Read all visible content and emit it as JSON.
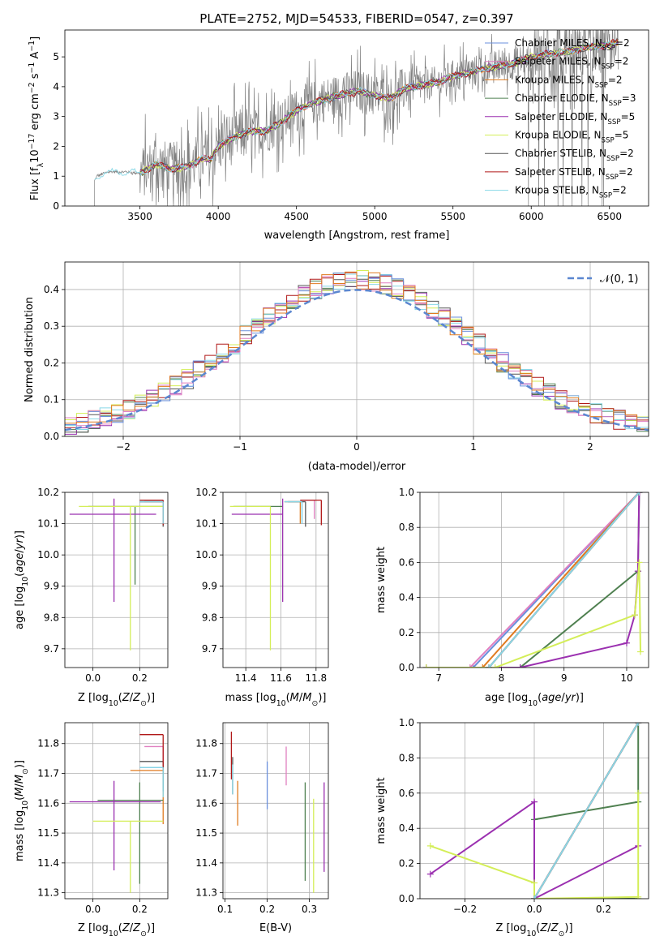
{
  "figure": {
    "title": "PLATE=2752, MJD=54533, FIBERID=0547, z=0.397"
  },
  "colors": {
    "Chabrier MILES": "#6a8fdc",
    "Salpeter MILES": "#e07fc0",
    "Kroupa MILES": "#e07b20",
    "Chabrier ELODIE": "#4f8050",
    "Salpeter ELODIE": "#9b30b0",
    "Kroupa ELODIE": "#d4ee58",
    "Chabrier STELIB": "#555555",
    "Salpeter STELIB": "#b01818",
    "Kroupa STELIB": "#88d8e6",
    "data": "#808080"
  },
  "chart_data": [
    {
      "id": "spectrum",
      "type": "line",
      "title": "PLATE=2752, MJD=54533, FIBERID=0547, z=0.397",
      "xlabel": "wavelength [Angstrom, rest frame]",
      "ylabel": "Flux [f_λ 10^-17 erg cm^-2 s^-1 A^-1]",
      "xlim": [
        3020,
        6750
      ],
      "ylim": [
        0,
        5.9
      ],
      "xticks": [
        "3500",
        "4000",
        "4500",
        "5000",
        "5500",
        "6000",
        "6500"
      ],
      "yticks": [
        "0",
        "1",
        "2",
        "3",
        "4",
        "5"
      ],
      "legend": [
        {
          "base": "Chabrier MILES, N",
          "sub": "SSP",
          "tail": "=2"
        },
        {
          "base": "Salpeter MILES, N",
          "sub": "SSP",
          "tail": "=2"
        },
        {
          "base": "Kroupa MILES, N",
          "sub": "SSP",
          "tail": "=2"
        },
        {
          "base": "Chabrier ELODIE, N",
          "sub": "SSP",
          "tail": "=3"
        },
        {
          "base": "Salpeter ELODIE, N",
          "sub": "SSP",
          "tail": "=5"
        },
        {
          "base": "Kroupa ELODIE, N",
          "sub": "SSP",
          "tail": "=5"
        },
        {
          "base": "Chabrier STELIB, N",
          "sub": "SSP",
          "tail": "=2"
        },
        {
          "base": "Salpeter STELIB, N",
          "sub": "SSP",
          "tail": "=2"
        },
        {
          "base": "Kroupa STELIB, N",
          "sub": "SSP",
          "tail": "=2"
        }
      ],
      "legend_loc": "right",
      "continuum": [
        [
          3210,
          0.85
        ],
        [
          3225,
          1.0
        ],
        [
          3300,
          1.15
        ],
        [
          3400,
          1.15
        ],
        [
          3500,
          1.1
        ],
        [
          3600,
          1.4
        ],
        [
          3700,
          1.25
        ],
        [
          3800,
          1.3
        ],
        [
          3900,
          1.6
        ],
        [
          3950,
          1.55
        ],
        [
          4000,
          2.0
        ],
        [
          4100,
          2.3
        ],
        [
          4200,
          2.5
        ],
        [
          4300,
          2.5
        ],
        [
          4400,
          2.8
        ],
        [
          4500,
          3.2
        ],
        [
          4600,
          3.45
        ],
        [
          4700,
          3.6
        ],
        [
          4800,
          3.75
        ],
        [
          4900,
          3.85
        ],
        [
          5000,
          3.7
        ],
        [
          5100,
          3.6
        ],
        [
          5200,
          3.95
        ],
        [
          5300,
          4.05
        ],
        [
          5400,
          4.15
        ],
        [
          5500,
          4.35
        ],
        [
          5600,
          4.45
        ],
        [
          5700,
          4.6
        ],
        [
          5800,
          4.7
        ],
        [
          5900,
          4.8
        ],
        [
          6000,
          5.0
        ],
        [
          6100,
          5.1
        ],
        [
          6200,
          5.15
        ],
        [
          6300,
          5.25
        ],
        [
          6400,
          5.35
        ],
        [
          6500,
          5.4
        ],
        [
          6550,
          5.5
        ]
      ]
    },
    {
      "id": "residuals",
      "type": "line",
      "xlabel": "(data-model)/error",
      "ylabel": "Normed distribution",
      "xlim": [
        -2.5,
        2.5
      ],
      "ylim": [
        0,
        0.475
      ],
      "xticks": [
        "−2",
        "−1",
        "0",
        "1",
        "2"
      ],
      "yticks": [
        "0.0",
        "0.1",
        "0.2",
        "0.3",
        "0.4"
      ],
      "legend": [
        "𝒩(0, 1)"
      ],
      "legend_loc": "upper right",
      "grid": true,
      "bin_width": 0.1
    },
    {
      "id": "age-vs-Z",
      "type": "scatter",
      "xlabel": "Z [log10(Z/Z⊙)]",
      "ylabel": "age  [log10(age/yr)]",
      "xlim": [
        -0.12,
        0.32
      ],
      "ylim": [
        9.64,
        10.2
      ],
      "xticks": [
        "0.0",
        "0.2"
      ],
      "yticks": [
        "9.7",
        "9.8",
        "9.9",
        "10.0",
        "10.1",
        "10.2"
      ],
      "grid": true,
      "points": [
        {
          "series": "Chabrier MILES",
          "x": 0.3,
          "xerr": [
            0.1,
            0.0
          ],
          "y": 10.17,
          "yerr": [
            0.07,
            0.0
          ]
        },
        {
          "series": "Salpeter MILES",
          "x": 0.3,
          "xerr": [
            0.08,
            0.0
          ],
          "y": 10.175,
          "yerr": [
            0.06,
            0.0
          ]
        },
        {
          "series": "Kroupa MILES",
          "x": 0.3,
          "xerr": [
            0.08,
            0.0
          ],
          "y": 10.17,
          "yerr": [
            0.07,
            0.0
          ]
        },
        {
          "series": "Chabrier ELODIE",
          "x": 0.18,
          "xerr": [
            0.2,
            0.12
          ],
          "y": 10.155,
          "yerr": [
            0.25,
            0.0
          ]
        },
        {
          "series": "Salpeter ELODIE",
          "x": 0.09,
          "xerr": [
            0.19,
            0.18
          ],
          "y": 10.13,
          "yerr": [
            0.28,
            0.05
          ]
        },
        {
          "series": "Kroupa ELODIE",
          "x": 0.16,
          "xerr": [
            0.22,
            0.14
          ],
          "y": 10.155,
          "yerr": [
            0.46,
            0.0
          ]
        },
        {
          "series": "Chabrier STELIB",
          "x": 0.3,
          "xerr": [
            0.1,
            0.0
          ],
          "y": 10.17,
          "yerr": [
            0.08,
            0.0
          ]
        },
        {
          "series": "Salpeter STELIB",
          "x": 0.3,
          "xerr": [
            0.1,
            0.0
          ],
          "y": 10.175,
          "yerr": [
            0.08,
            0.0
          ]
        },
        {
          "series": "Kroupa STELIB",
          "x": 0.3,
          "xerr": [
            0.1,
            0.0
          ],
          "y": 10.17,
          "yerr": [
            0.07,
            0.0
          ]
        }
      ]
    },
    {
      "id": "age-vs-mass",
      "type": "scatter",
      "xlabel": "mass [log10(M/M⊙)]",
      "ylabel": "",
      "xlim": [
        11.27,
        11.87
      ],
      "ylim": [
        9.64,
        10.2
      ],
      "xticks": [
        "11.4",
        "11.6",
        "11.8"
      ],
      "yticks": [
        "9.7",
        "9.8",
        "9.9",
        "10.0",
        "10.1",
        "10.2"
      ],
      "grid": true,
      "points": [
        {
          "series": "Chabrier MILES",
          "x": 11.72,
          "xerr": [
            0.1,
            0.0
          ],
          "y": 10.17,
          "yerr": [
            0.07,
            0.0
          ]
        },
        {
          "series": "Salpeter MILES",
          "x": 11.79,
          "xerr": [
            0.08,
            0.0
          ],
          "y": 10.175,
          "yerr": [
            0.06,
            0.0
          ]
        },
        {
          "series": "Kroupa MILES",
          "x": 11.71,
          "xerr": [
            0.09,
            0.0
          ],
          "y": 10.17,
          "yerr": [
            0.07,
            0.0
          ]
        },
        {
          "series": "Chabrier ELODIE",
          "x": 11.61,
          "xerr": [
            0.28,
            0.0
          ],
          "y": 10.155,
          "yerr": [
            0.0,
            0.0
          ]
        },
        {
          "series": "Salpeter ELODIE",
          "x": 11.61,
          "xerr": [
            0.29,
            0.0
          ],
          "y": 10.13,
          "yerr": [
            0.28,
            0.05
          ]
        },
        {
          "series": "Kroupa ELODIE",
          "x": 11.54,
          "xerr": [
            0.23,
            0.0
          ],
          "y": 10.155,
          "yerr": [
            0.46,
            0.0
          ]
        },
        {
          "series": "Chabrier STELIB",
          "x": 11.74,
          "xerr": [
            0.1,
            0.0
          ],
          "y": 10.17,
          "yerr": [
            0.08,
            0.0
          ]
        },
        {
          "series": "Salpeter STELIB",
          "x": 11.83,
          "xerr": [
            0.12,
            0.0
          ],
          "y": 10.175,
          "yerr": [
            0.08,
            0.0
          ]
        },
        {
          "series": "Kroupa STELIB",
          "x": 11.72,
          "xerr": [
            0.1,
            0.0
          ],
          "y": 10.17,
          "yerr": [
            0.07,
            0.0
          ]
        }
      ]
    },
    {
      "id": "mass-weight-vs-age",
      "type": "line",
      "xlabel": "age  [log10(age/yr)]",
      "ylabel": "mass weight",
      "xlim": [
        6.7,
        10.35
      ],
      "ylim": [
        0,
        1.0
      ],
      "xticks": [
        "7",
        "8",
        "9",
        "10"
      ],
      "yticks": [
        "0.0",
        "0.2",
        "0.4",
        "0.6",
        "0.8",
        "1.0"
      ],
      "grid": true,
      "series": [
        {
          "series": "Chabrier MILES",
          "x": [
            7.55,
            10.2
          ],
          "y": [
            0.0,
            1.0
          ]
        },
        {
          "series": "Salpeter MILES",
          "x": [
            7.5,
            10.2
          ],
          "y": [
            0.0,
            1.0
          ]
        },
        {
          "series": "Kroupa MILES",
          "x": [
            7.7,
            10.2
          ],
          "y": [
            0.0,
            1.0
          ]
        },
        {
          "series": "Chabrier ELODIE",
          "x": [
            6.8,
            8.3,
            10.18,
            10.2
          ],
          "y": [
            0.0,
            0.0,
            0.55,
            1.0
          ]
        },
        {
          "series": "Salpeter ELODIE",
          "x": [
            6.8,
            8.3,
            10.0,
            10.13,
            10.18,
            10.2
          ],
          "y": [
            0.0,
            0.0,
            0.14,
            0.3,
            0.55,
            1.0
          ]
        },
        {
          "series": "Kroupa ELODIE",
          "x": [
            6.8,
            7.9,
            10.13,
            10.2,
            10.22
          ],
          "y": [
            0.0,
            0.0,
            0.3,
            0.6,
            0.09
          ]
        },
        {
          "series": "Chabrier STELIB",
          "x": [
            7.8,
            10.2
          ],
          "y": [
            0.0,
            1.0
          ]
        },
        {
          "series": "Salpeter STELIB",
          "x": [
            7.8,
            10.2
          ],
          "y": [
            0.0,
            1.0
          ]
        },
        {
          "series": "Kroupa STELIB",
          "x": [
            7.8,
            10.2
          ],
          "y": [
            0.0,
            1.0
          ]
        }
      ]
    },
    {
      "id": "mass-vs-Z",
      "type": "scatter",
      "xlabel": "Z [log10(Z/Z⊙)]",
      "ylabel": "mass [log10(M/M⊙)]",
      "xlim": [
        -0.12,
        0.32
      ],
      "ylim": [
        11.28,
        11.87
      ],
      "xticks": [
        "0.0",
        "0.2"
      ],
      "yticks": [
        "11.3",
        "11.4",
        "11.5",
        "11.6",
        "11.7",
        "11.8"
      ],
      "grid": true,
      "points": [
        {
          "series": "Chabrier MILES",
          "x": 0.3,
          "xerr": [
            0.1,
            0.0
          ],
          "y": 11.72,
          "yerr": [
            0.07,
            0.0
          ]
        },
        {
          "series": "Salpeter MILES",
          "x": 0.3,
          "xerr": [
            0.08,
            0.0
          ],
          "y": 11.79,
          "yerr": [
            0.06,
            0.0
          ]
        },
        {
          "series": "Kroupa MILES",
          "x": 0.3,
          "xerr": [
            0.14,
            0.0
          ],
          "y": 11.71,
          "yerr": [
            0.18,
            0.0
          ]
        },
        {
          "series": "Chabrier ELODIE",
          "x": 0.2,
          "xerr": [
            0.18,
            0.1
          ],
          "y": 11.61,
          "yerr": [
            0.28,
            0.06
          ]
        },
        {
          "series": "Salpeter ELODIE",
          "x": 0.09,
          "xerr": [
            0.19,
            0.2
          ],
          "y": 11.605,
          "yerr": [
            0.23,
            0.07
          ]
        },
        {
          "series": "Kroupa ELODIE",
          "x": 0.16,
          "xerr": [
            0.16,
            0.14
          ],
          "y": 11.54,
          "yerr": [
            0.24,
            0.0
          ]
        },
        {
          "series": "Chabrier STELIB",
          "x": 0.3,
          "xerr": [
            0.1,
            0.0
          ],
          "y": 11.74,
          "yerr": [
            0.1,
            0.0
          ]
        },
        {
          "series": "Salpeter STELIB",
          "x": 0.3,
          "xerr": [
            0.1,
            0.0
          ],
          "y": 11.83,
          "yerr": [
            0.12,
            0.0
          ]
        },
        {
          "series": "Kroupa STELIB",
          "x": 0.3,
          "xerr": [
            0.1,
            0.0
          ],
          "y": 11.72,
          "yerr": [
            0.1,
            0.0
          ]
        }
      ]
    },
    {
      "id": "mass-vs-ebv",
      "type": "scatter",
      "xlabel": "E(B-V)",
      "ylabel": "",
      "xlim": [
        0.095,
        0.345
      ],
      "ylim": [
        11.28,
        11.87
      ],
      "xticks": [
        "0.1",
        "0.2",
        "0.3"
      ],
      "yticks": [
        "11.3",
        "11.4",
        "11.5",
        "11.6",
        "11.7",
        "11.8"
      ],
      "grid": true,
      "points": [
        {
          "series": "Chabrier MILES",
          "x": 0.2,
          "y": 11.66,
          "yerr": [
            0.08,
            0.08
          ]
        },
        {
          "series": "Salpeter MILES",
          "x": 0.245,
          "y": 11.725,
          "yerr": [
            0.065,
            0.065
          ]
        },
        {
          "series": "Kroupa MILES",
          "x": 0.13,
          "y": 11.6,
          "yerr": [
            0.075,
            0.075
          ]
        },
        {
          "series": "Chabrier ELODIE",
          "x": 0.29,
          "y": 11.51,
          "yerr": [
            0.17,
            0.16
          ]
        },
        {
          "series": "Salpeter ELODIE",
          "x": 0.335,
          "y": 11.52,
          "yerr": [
            0.15,
            0.15
          ]
        },
        {
          "series": "Kroupa ELODIE",
          "x": 0.31,
          "y": 11.46,
          "yerr": [
            0.16,
            0.155
          ]
        },
        {
          "series": "Chabrier STELIB",
          "x": 0.118,
          "y": 11.69,
          "yerr": [
            0.06,
            0.065
          ]
        },
        {
          "series": "Salpeter STELIB",
          "x": 0.115,
          "y": 11.76,
          "yerr": [
            0.08,
            0.08
          ]
        },
        {
          "series": "Kroupa STELIB",
          "x": 0.118,
          "y": 11.68,
          "yerr": [
            0.05,
            0.05
          ]
        }
      ]
    },
    {
      "id": "mass-weight-vs-Z",
      "type": "line",
      "xlabel": "Z [log10(Z/Z⊙)]",
      "ylabel": "mass weight",
      "xlim": [
        -0.33,
        0.33
      ],
      "ylim": [
        0,
        1.0
      ],
      "xticks": [
        "−0.2",
        "0.0",
        "0.2"
      ],
      "yticks": [
        "0.0",
        "0.2",
        "0.4",
        "0.6",
        "0.8",
        "1.0"
      ],
      "grid": true,
      "series": [
        {
          "series": "Chabrier MILES",
          "x": [
            0.0,
            0.3
          ],
          "y": [
            0.0,
            1.0
          ]
        },
        {
          "series": "Salpeter MILES",
          "x": [
            0.0,
            0.3
          ],
          "y": [
            0.0,
            1.0
          ]
        },
        {
          "series": "Kroupa MILES",
          "x": [
            0.0,
            0.3
          ],
          "y": [
            0.0,
            1.0
          ]
        },
        {
          "series": "Chabrier ELODIE",
          "x": [
            0.3,
            0.3,
            0.0,
            0.0,
            0.3
          ],
          "y": [
            1.0,
            0.55,
            0.45,
            0.0,
            0.0
          ]
        },
        {
          "series": "Salpeter ELODIE",
          "x": [
            -0.3,
            0.0,
            0.0,
            0.3
          ],
          "y": [
            0.14,
            0.55,
            0.0,
            0.3
          ]
        },
        {
          "series": "Kroupa ELODIE",
          "x": [
            -0.3,
            0.0,
            0.0,
            0.3,
            0.3,
            0.3
          ],
          "y": [
            0.3,
            0.09,
            0.0,
            0.01,
            0.6,
            0.0
          ]
        },
        {
          "series": "Chabrier STELIB",
          "x": [
            0.0,
            0.3
          ],
          "y": [
            0.0,
            1.0
          ]
        },
        {
          "series": "Salpeter STELIB",
          "x": [
            0.0,
            0.3
          ],
          "y": [
            0.0,
            1.0
          ]
        },
        {
          "series": "Kroupa STELIB",
          "x": [
            0.0,
            0.3
          ],
          "y": [
            0.0,
            1.0
          ]
        }
      ]
    }
  ]
}
